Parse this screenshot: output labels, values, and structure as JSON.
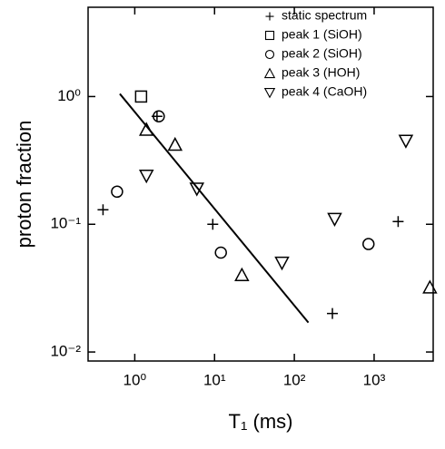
{
  "chart_data": {
    "type": "scatter",
    "x_label": "T₁ (ms)",
    "y_label": "proton fraction",
    "xscale": "log",
    "yscale": "log",
    "xlim": [
      0.26,
      5500
    ],
    "ylim": [
      0.0085,
      5
    ],
    "xticks": [
      {
        "value": 1,
        "label": "10⁰"
      },
      {
        "value": 10,
        "label": "10¹"
      },
      {
        "value": 100,
        "label": "10²"
      },
      {
        "value": 1000,
        "label": "10³"
      }
    ],
    "yticks": [
      {
        "value": 0.01,
        "label": "10⁻²"
      },
      {
        "value": 0.1,
        "label": "10⁻¹"
      },
      {
        "value": 1,
        "label": "10⁰"
      }
    ],
    "legend": "upper right",
    "series": [
      {
        "name": "static spectrum",
        "color": "#000000",
        "marker": "plus",
        "x": [
          0.4,
          1.9,
          9.5,
          300,
          2000
        ],
        "values": [
          0.13,
          0.7,
          0.1,
          0.02,
          0.105
        ]
      },
      {
        "name": "peak 1 (SiOH)",
        "color": "#000000",
        "marker": "square",
        "x": [
          1.2
        ],
        "values": [
          1.0
        ]
      },
      {
        "name": "peak 2 (SiOH)",
        "color": "#000000",
        "marker": "circle",
        "x": [
          0.6,
          2.0,
          12,
          850
        ],
        "values": [
          0.18,
          0.7,
          0.06,
          0.07
        ]
      },
      {
        "name": "peak 3 (HOH)",
        "color": "#000000",
        "marker": "triangle-up",
        "x": [
          1.4,
          3.2,
          22,
          5000
        ],
        "values": [
          0.55,
          0.42,
          0.04,
          0.032
        ]
      },
      {
        "name": "peak 4 (CaOH)",
        "color": "#000000",
        "marker": "triangle-down",
        "x": [
          1.4,
          6,
          70,
          320,
          2500
        ],
        "values": [
          0.24,
          0.19,
          0.05,
          0.11,
          0.45
        ]
      }
    ],
    "fit_line": {
      "color": "#000000",
      "x": [
        0.65,
        150
      ],
      "values": [
        1.05,
        0.017
      ]
    }
  }
}
